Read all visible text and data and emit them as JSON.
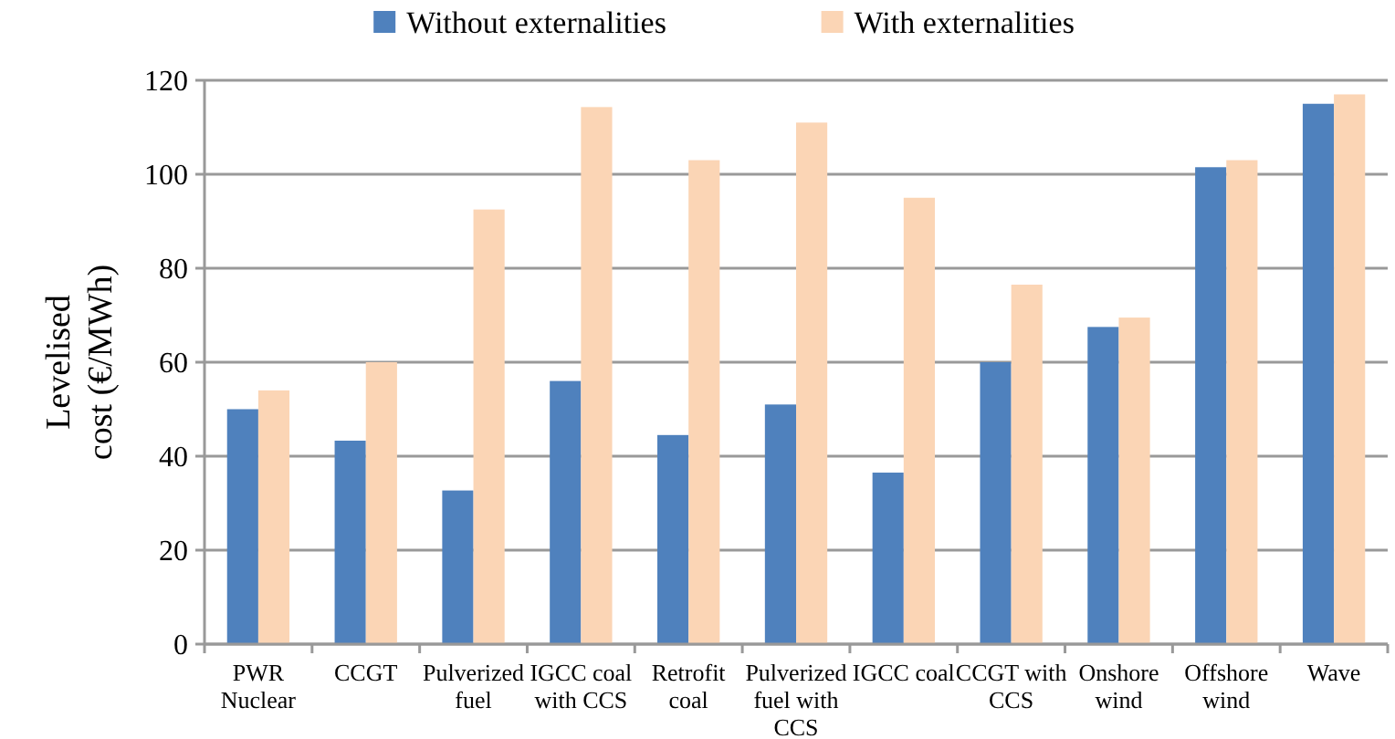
{
  "chart_data": {
    "type": "bar",
    "ylabel": "Levelised cost (€/MWh)",
    "categories": [
      "PWR Nuclear",
      "CCGT",
      "Pulverized fuel",
      "IGCC coal with CCS",
      "Retrofit coal",
      "Pulverized fuel with CCS",
      "IGCC coal",
      "CCGT with CCS",
      "Onshore wind",
      "Offshore wind",
      "Wave"
    ],
    "series": [
      {
        "name": "Without externalities",
        "color": "#4f81bd",
        "values": [
          50,
          43.3,
          32.7,
          56,
          44.5,
          51,
          36.5,
          60,
          67.5,
          101.5,
          115
        ]
      },
      {
        "name": "With externalities",
        "color": "#fbd5b5",
        "values": [
          54,
          60,
          92.5,
          114.3,
          103,
          111,
          95,
          76.5,
          69.5,
          103,
          117
        ]
      }
    ],
    "ylim": [
      0,
      120
    ],
    "yticks": [
      0,
      20,
      40,
      60,
      80,
      100,
      120
    ],
    "grid": "y",
    "legend": "top"
  }
}
